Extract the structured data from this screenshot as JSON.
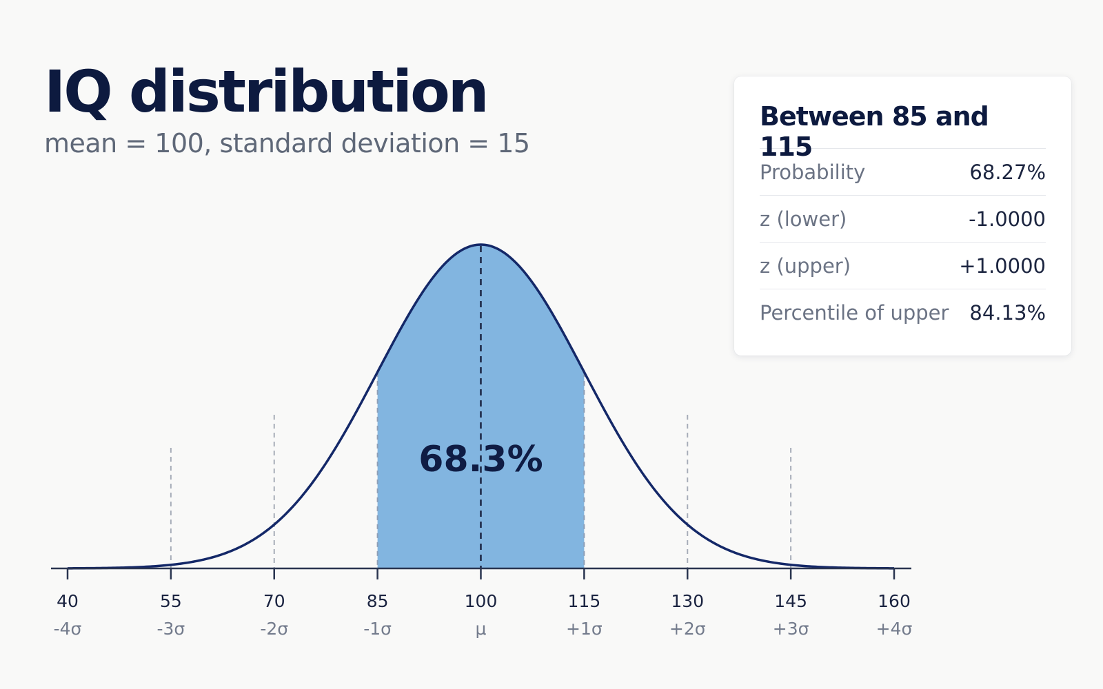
{
  "header": {
    "title": "IQ distribution",
    "subtitle": "mean = 100, standard deviation = 15"
  },
  "info_card": {
    "title": "Between 85 and 115",
    "rows": [
      {
        "label": "Probability",
        "value": "68.27%"
      },
      {
        "label": "z (lower)",
        "value": "-1.0000"
      },
      {
        "label": "z (upper)",
        "value": "+1.0000"
      },
      {
        "label": "Percentile of upper",
        "value": "84.13%"
      }
    ]
  },
  "chart_data": {
    "type": "area",
    "title": "IQ distribution",
    "subtitle": "mean = 100, standard deviation = 15",
    "mean": 100,
    "sd": 15,
    "xlim": [
      40,
      160
    ],
    "ticks": [
      {
        "value": 40,
        "label": "40",
        "sigma": "-4σ"
      },
      {
        "value": 55,
        "label": "55",
        "sigma": "-3σ"
      },
      {
        "value": 70,
        "label": "70",
        "sigma": "-2σ"
      },
      {
        "value": 85,
        "label": "85",
        "sigma": "-1σ"
      },
      {
        "value": 100,
        "label": "100",
        "sigma": "μ"
      },
      {
        "value": 115,
        "label": "115",
        "sigma": "+1σ"
      },
      {
        "value": 130,
        "label": "130",
        "sigma": "+2σ"
      },
      {
        "value": 145,
        "label": "145",
        "sigma": "+3σ"
      },
      {
        "value": 160,
        "label": "160",
        "sigma": "+4σ"
      }
    ],
    "shaded_range": [
      85,
      115
    ],
    "shaded_label": "68.3%",
    "colors": {
      "curve": "#142868",
      "fill": "#82b5e0",
      "axis": "#2a3550",
      "gridline": "#a7adb8",
      "mean_line": "#1a2340"
    }
  }
}
